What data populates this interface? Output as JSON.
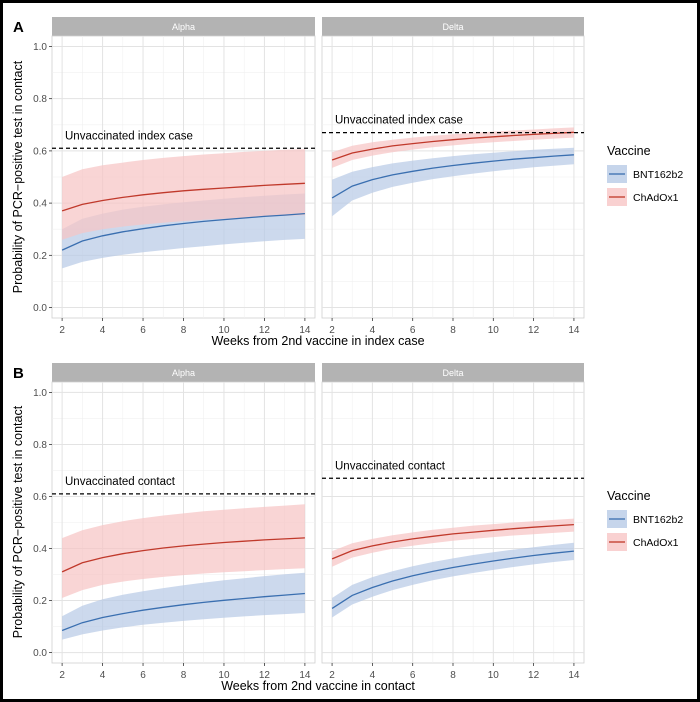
{
  "panels": [
    {
      "label": "A",
      "xlabel": "Weeks from 2nd vaccine in index case",
      "ylabel": "Probability of PCR−positive test in contact",
      "legend_title": "Vaccine",
      "facets": [
        {
          "strip": "Alpha",
          "ref_line": {
            "label": "Unvaccinated index case",
            "value": 0.61
          },
          "series": [
            {
              "name": "BNT162b2",
              "color": "#3a6fb0",
              "fill": "#b8cbe6",
              "x": [
                2,
                3,
                4,
                5,
                6,
                7,
                8,
                9,
                10,
                11,
                12,
                13,
                14
              ],
              "y": [
                0.22,
                0.255,
                0.275,
                0.29,
                0.302,
                0.313,
                0.322,
                0.33,
                0.337,
                0.343,
                0.349,
                0.354,
                0.36
              ],
              "lower": [
                0.15,
                0.175,
                0.19,
                0.202,
                0.212,
                0.22,
                0.228,
                0.235,
                0.242,
                0.248,
                0.254,
                0.259,
                0.263
              ],
              "upper": [
                0.3,
                0.34,
                0.36,
                0.375,
                0.386,
                0.395,
                0.403,
                0.41,
                0.417,
                0.423,
                0.428,
                0.433,
                0.437
              ]
            },
            {
              "name": "ChAdOx1",
              "color": "#c0392b",
              "fill": "#f7c5c5",
              "x": [
                2,
                3,
                4,
                5,
                6,
                7,
                8,
                9,
                10,
                11,
                12,
                13,
                14
              ],
              "y": [
                0.37,
                0.395,
                0.41,
                0.422,
                0.432,
                0.44,
                0.447,
                0.453,
                0.458,
                0.463,
                0.468,
                0.472,
                0.476
              ],
              "lower": [
                0.26,
                0.285,
                0.3,
                0.31,
                0.318,
                0.325,
                0.331,
                0.336,
                0.34,
                0.344,
                0.348,
                0.351,
                0.354
              ],
              "upper": [
                0.5,
                0.53,
                0.545,
                0.555,
                0.565,
                0.573,
                0.58,
                0.586,
                0.591,
                0.596,
                0.6,
                0.604,
                0.607
              ]
            }
          ]
        },
        {
          "strip": "Delta",
          "ref_line": {
            "label": "Unvaccinated index case",
            "value": 0.67
          },
          "series": [
            {
              "name": "BNT162b2",
              "color": "#3a6fb0",
              "fill": "#b8cbe6",
              "x": [
                2,
                3,
                4,
                5,
                6,
                7,
                8,
                9,
                10,
                11,
                12,
                13,
                14
              ],
              "y": [
                0.42,
                0.465,
                0.49,
                0.508,
                0.522,
                0.534,
                0.544,
                0.553,
                0.561,
                0.568,
                0.574,
                0.58,
                0.585
              ],
              "lower": [
                0.35,
                0.41,
                0.44,
                0.462,
                0.478,
                0.492,
                0.503,
                0.513,
                0.522,
                0.53,
                0.537,
                0.543,
                0.549
              ],
              "upper": [
                0.49,
                0.52,
                0.538,
                0.552,
                0.563,
                0.572,
                0.58,
                0.587,
                0.593,
                0.599,
                0.604,
                0.608,
                0.612
              ]
            },
            {
              "name": "ChAdOx1",
              "color": "#c0392b",
              "fill": "#f7c5c5",
              "x": [
                2,
                3,
                4,
                5,
                6,
                7,
                8,
                9,
                10,
                11,
                12,
                13,
                14
              ],
              "y": [
                0.565,
                0.592,
                0.607,
                0.619,
                0.628,
                0.636,
                0.643,
                0.649,
                0.654,
                0.659,
                0.663,
                0.667,
                0.671
              ],
              "lower": [
                0.535,
                0.565,
                0.582,
                0.595,
                0.605,
                0.614,
                0.621,
                0.628,
                0.633,
                0.638,
                0.643,
                0.647,
                0.651
              ],
              "upper": [
                0.595,
                0.62,
                0.633,
                0.643,
                0.651,
                0.658,
                0.664,
                0.669,
                0.674,
                0.678,
                0.682,
                0.686,
                0.69
              ]
            }
          ]
        }
      ],
      "legend": [
        {
          "name": "BNT162b2",
          "color": "#3a6fb0",
          "fill": "#b8cbe6"
        },
        {
          "name": "ChAdOx1",
          "color": "#c0392b",
          "fill": "#f7c5c5"
        }
      ]
    },
    {
      "label": "B",
      "xlabel": "Weeks from 2nd vaccine in contact",
      "ylabel": "Probability of PCR−positive test in contact",
      "legend_title": "Vaccine",
      "facets": [
        {
          "strip": "Alpha",
          "ref_line": {
            "label": "Unvaccinated contact",
            "value": 0.61
          },
          "series": [
            {
              "name": "BNT162b2",
              "color": "#3a6fb0",
              "fill": "#b8cbe6",
              "x": [
                2,
                3,
                4,
                5,
                6,
                7,
                8,
                9,
                10,
                11,
                12,
                13,
                14
              ],
              "y": [
                0.085,
                0.115,
                0.135,
                0.15,
                0.163,
                0.174,
                0.184,
                0.193,
                0.201,
                0.208,
                0.215,
                0.221,
                0.227
              ],
              "lower": [
                0.05,
                0.07,
                0.085,
                0.097,
                0.107,
                0.115,
                0.122,
                0.128,
                0.134,
                0.139,
                0.144,
                0.148,
                0.152
              ],
              "upper": [
                0.14,
                0.18,
                0.205,
                0.222,
                0.236,
                0.248,
                0.259,
                0.269,
                0.278,
                0.286,
                0.294,
                0.301,
                0.307
              ]
            },
            {
              "name": "ChAdOx1",
              "color": "#c0392b",
              "fill": "#f7c5c5",
              "x": [
                2,
                3,
                4,
                5,
                6,
                7,
                8,
                9,
                10,
                11,
                12,
                13,
                14
              ],
              "y": [
                0.31,
                0.345,
                0.365,
                0.38,
                0.392,
                0.402,
                0.41,
                0.417,
                0.423,
                0.428,
                0.433,
                0.437,
                0.441
              ],
              "lower": [
                0.21,
                0.24,
                0.26,
                0.273,
                0.283,
                0.291,
                0.298,
                0.304,
                0.309,
                0.313,
                0.317,
                0.321,
                0.324
              ],
              "upper": [
                0.44,
                0.47,
                0.49,
                0.505,
                0.517,
                0.527,
                0.535,
                0.543,
                0.549,
                0.555,
                0.56,
                0.565,
                0.57
              ]
            }
          ]
        },
        {
          "strip": "Delta",
          "ref_line": {
            "label": "Unvaccinated contact",
            "value": 0.67
          },
          "series": [
            {
              "name": "BNT162b2",
              "color": "#3a6fb0",
              "fill": "#b8cbe6",
              "x": [
                2,
                3,
                4,
                5,
                6,
                7,
                8,
                9,
                10,
                11,
                12,
                13,
                14
              ],
              "y": [
                0.17,
                0.22,
                0.25,
                0.275,
                0.295,
                0.312,
                0.327,
                0.34,
                0.352,
                0.363,
                0.373,
                0.382,
                0.39
              ],
              "lower": [
                0.135,
                0.185,
                0.215,
                0.24,
                0.26,
                0.278,
                0.293,
                0.306,
                0.318,
                0.329,
                0.339,
                0.348,
                0.356
              ],
              "upper": [
                0.21,
                0.26,
                0.29,
                0.313,
                0.332,
                0.348,
                0.362,
                0.375,
                0.386,
                0.396,
                0.405,
                0.414,
                0.422
              ]
            },
            {
              "name": "ChAdOx1",
              "color": "#c0392b",
              "fill": "#f7c5c5",
              "x": [
                2,
                3,
                4,
                5,
                6,
                7,
                8,
                9,
                10,
                11,
                12,
                13,
                14
              ],
              "y": [
                0.36,
                0.392,
                0.41,
                0.425,
                0.437,
                0.447,
                0.456,
                0.463,
                0.47,
                0.476,
                0.482,
                0.487,
                0.492
              ],
              "lower": [
                0.33,
                0.365,
                0.384,
                0.399,
                0.411,
                0.421,
                0.43,
                0.437,
                0.444,
                0.45,
                0.455,
                0.46,
                0.465
              ],
              "upper": [
                0.39,
                0.42,
                0.437,
                0.451,
                0.462,
                0.472,
                0.48,
                0.488,
                0.494,
                0.5,
                0.505,
                0.51,
                0.515
              ]
            }
          ]
        }
      ],
      "legend": [
        {
          "name": "BNT162b2",
          "color": "#3a6fb0",
          "fill": "#b8cbe6"
        },
        {
          "name": "ChAdOx1",
          "color": "#c0392b",
          "fill": "#f7c5c5"
        }
      ]
    }
  ],
  "chart_data": [
    {
      "type": "line",
      "panel": "A",
      "xlabel": "Weeks from 2nd vaccine in index case",
      "ylabel": "Probability of PCR−positive test in contact",
      "xlim": [
        1.5,
        14.5
      ],
      "ylim": [
        -0.04,
        1.04
      ],
      "x_ticks": [
        2,
        4,
        6,
        8,
        10,
        12,
        14
      ],
      "y_ticks": [
        0.0,
        0.2,
        0.4,
        0.6,
        0.8,
        1.0
      ],
      "grid": true,
      "legend_position": "right"
    },
    {
      "type": "line",
      "panel": "B",
      "xlabel": "Weeks from 2nd vaccine in contact",
      "ylabel": "Probability of PCR−positive test in contact",
      "xlim": [
        1.5,
        14.5
      ],
      "ylim": [
        -0.04,
        1.04
      ],
      "x_ticks": [
        2,
        4,
        6,
        8,
        10,
        12,
        14
      ],
      "y_ticks": [
        0.0,
        0.2,
        0.4,
        0.6,
        0.8,
        1.0
      ],
      "grid": true,
      "legend_position": "right"
    }
  ]
}
